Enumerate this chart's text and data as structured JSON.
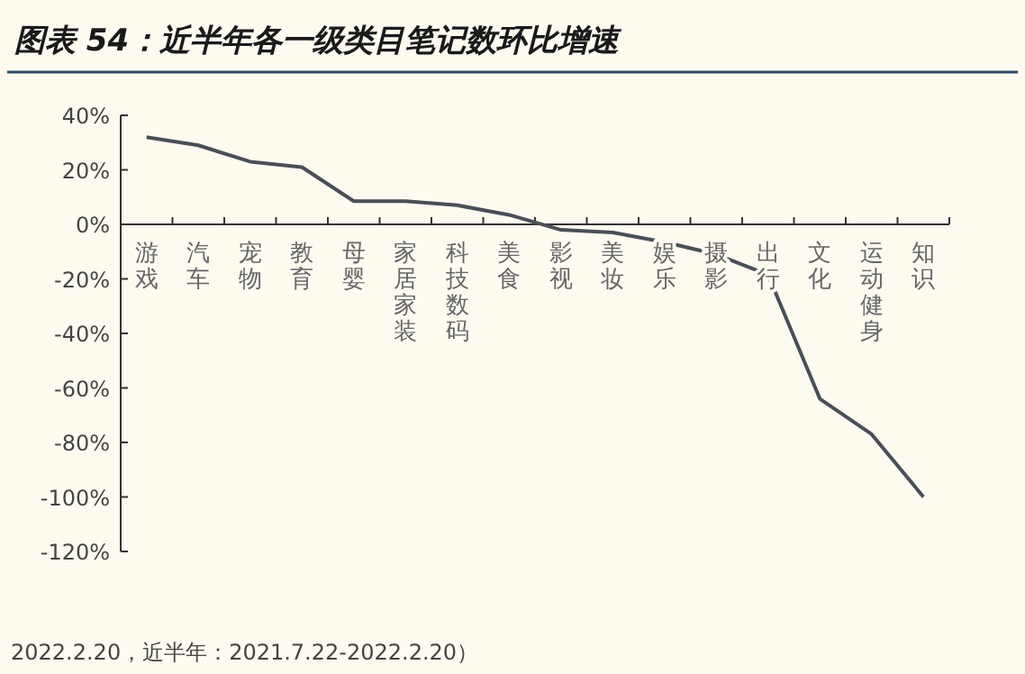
{
  "chart_data": {
    "type": "line",
    "title": "图表 54：近半年各一级类目笔记数环比增速",
    "categories": [
      "游戏",
      "汽车",
      "宠物",
      "教育",
      "母婴",
      "家居家装",
      "科技数码",
      "美食",
      "影视",
      "美妆",
      "娱乐",
      "摄影",
      "出行",
      "文化",
      "运动健身",
      "知识"
    ],
    "series": [
      {
        "color": "#4a4f57",
        "values": [
          32,
          29,
          23,
          21,
          8.5,
          8.5,
          7,
          3.5,
          -2,
          -3,
          -6.5,
          -11,
          -18.5,
          -64,
          -77,
          -100
        ]
      }
    ],
    "ylim": [
      -120,
      40
    ],
    "yticks": [
      {
        "value": -120,
        "label": "-120%"
      },
      {
        "value": -100,
        "label": "-100%"
      },
      {
        "value": -80,
        "label": "-80%"
      },
      {
        "value": -60,
        "label": "-60%"
      },
      {
        "value": -40,
        "label": "-40%"
      },
      {
        "value": -20,
        "label": "-20%"
      },
      {
        "value": 0,
        "label": "0%"
      },
      {
        "value": 20,
        "label": "20%"
      },
      {
        "value": 40,
        "label": "40%"
      }
    ],
    "annotations": [
      "2022.2.20，近半年：2021.7.22-2022.2.20）"
    ],
    "grid": false,
    "marker": "none",
    "line_style": "solid"
  }
}
